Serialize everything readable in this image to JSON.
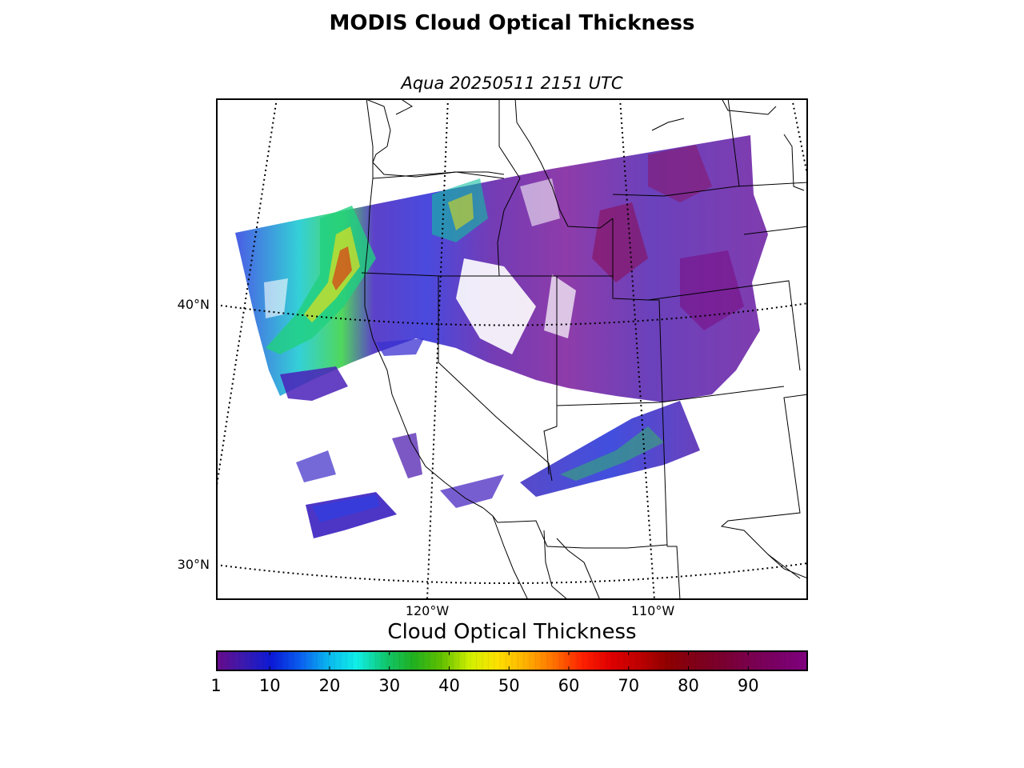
{
  "title": "MODIS Cloud Optical Thickness",
  "subtitle": "Aqua 20250511 2151 UTC",
  "map": {
    "lat_labels": [
      {
        "text": "40°N",
        "lat": 40
      },
      {
        "text": "30°N",
        "lat": 30
      }
    ],
    "lon_labels": [
      {
        "text": "120°W",
        "lon": -120
      },
      {
        "text": "110°W",
        "lon": -110
      }
    ],
    "region": "Western United States",
    "swath_colorscale_field": "cloud optical thickness"
  },
  "colorbar": {
    "label": "Cloud Optical Thickness",
    "min": 1,
    "max": 100,
    "ticks": [
      1,
      10,
      20,
      30,
      40,
      50,
      60,
      70,
      80,
      90
    ],
    "tick_labels": [
      "1",
      "10",
      "20",
      "30",
      "40",
      "50",
      "60",
      "70",
      "80",
      "90"
    ],
    "colors": [
      "#6a0a8a",
      "#3a1ab0",
      "#0a1ad8",
      "#0a60f0",
      "#0ab8f0",
      "#10f0e8",
      "#10c870",
      "#20b020",
      "#60c000",
      "#d0f000",
      "#ffe000",
      "#ffb000",
      "#ff7000",
      "#ff2000",
      "#e00000",
      "#c00000",
      "#900000",
      "#800018",
      "#7a0030",
      "#7a0050",
      "#7a0068",
      "#800080"
    ]
  }
}
